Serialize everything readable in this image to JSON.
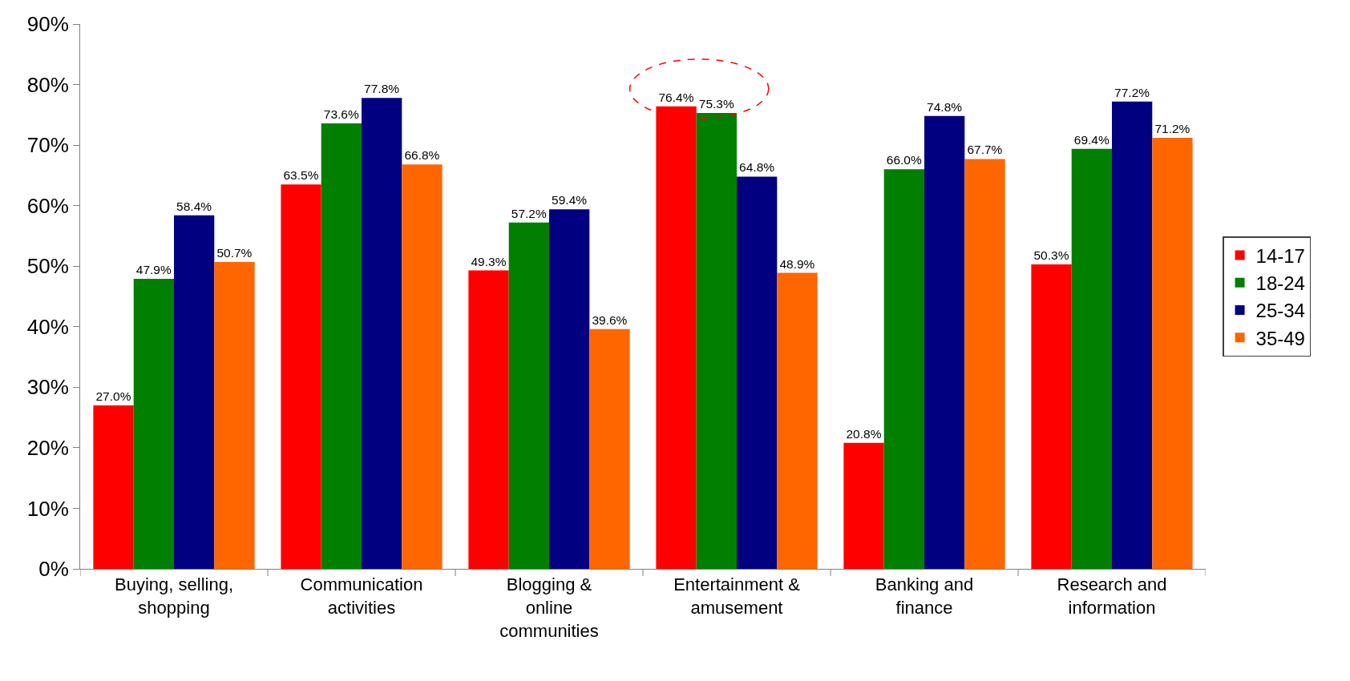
{
  "chart_data": {
    "type": "bar",
    "categories": [
      "Buying, selling, shopping",
      "Communication activities",
      "Blogging & online communities",
      "Entertainment & amusement",
      "Banking and finance",
      "Research and information"
    ],
    "series": [
      {
        "name": "14-17",
        "color": "#ff0000",
        "values": [
          27.0,
          63.5,
          49.3,
          76.4,
          20.8,
          50.3
        ],
        "value_labels": [
          "27.0%",
          "63.5%",
          "49.3%",
          "76.4%",
          "20.8%",
          "50.3%"
        ]
      },
      {
        "name": "18-24",
        "color": "#007f00",
        "values": [
          47.9,
          73.6,
          57.2,
          75.3,
          66.0,
          69.4
        ],
        "value_labels": [
          "47.9%",
          "73.6%",
          "57.2%",
          "75.3%",
          "66.0%",
          "69.4%"
        ]
      },
      {
        "name": "25-34",
        "color": "#000080",
        "values": [
          58.4,
          77.8,
          59.4,
          64.8,
          74.8,
          77.2
        ],
        "value_labels": [
          "58.4%",
          "77.8%",
          "59.4%",
          "64.8%",
          "74.8%",
          "77.2%"
        ]
      },
      {
        "name": "35-49",
        "color": "#ff6600",
        "values": [
          50.7,
          66.8,
          39.6,
          48.9,
          67.7,
          71.2
        ],
        "value_labels": [
          "50.7%",
          "66.8%",
          "39.6%",
          "48.9%",
          "67.7%",
          "71.2%"
        ]
      }
    ],
    "ylim": [
      0,
      90
    ],
    "yticks": [
      {
        "value": 0,
        "label": "0%"
      },
      {
        "value": 10,
        "label": "10%"
      },
      {
        "value": 20,
        "label": "20%"
      },
      {
        "value": 30,
        "label": "30%"
      },
      {
        "value": 40,
        "label": "40%"
      },
      {
        "value": 50,
        "label": "50%"
      },
      {
        "value": 60,
        "label": "60%"
      },
      {
        "value": 70,
        "label": "70%"
      },
      {
        "value": 80,
        "label": "80%"
      },
      {
        "value": 90,
        "label": "90%"
      }
    ],
    "legend": "right"
  }
}
